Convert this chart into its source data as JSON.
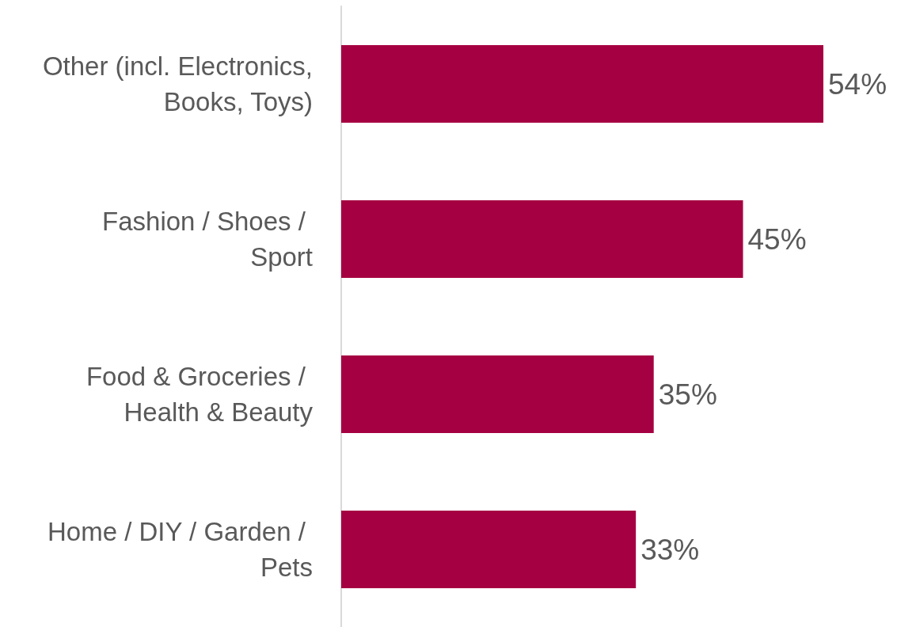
{
  "chart_data": {
    "type": "bar",
    "orientation": "horizontal",
    "categories": [
      "Other (incl. Electronics, Books, Toys)",
      "Fashion / Shoes / Sport",
      "Food & Groceries / Health & Beauty",
      "Home / DIY / Garden / Pets"
    ],
    "values": [
      54,
      45,
      35,
      33
    ],
    "value_labels": [
      "54%",
      "45%",
      "35%",
      "33%"
    ],
    "color": "#a50041"
  }
}
